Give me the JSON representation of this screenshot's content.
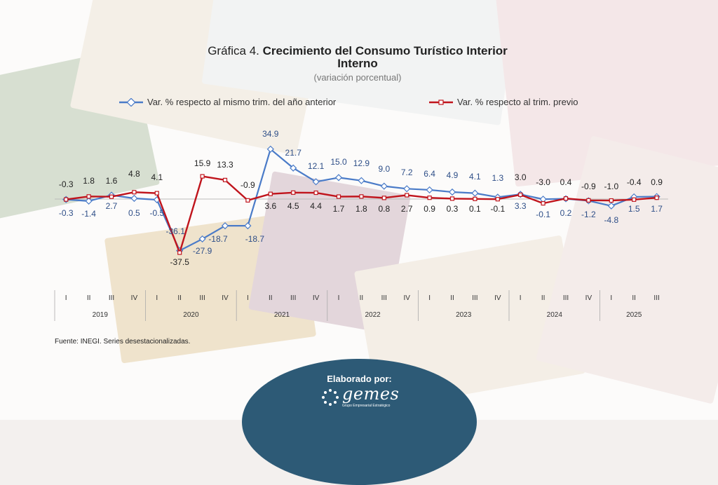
{
  "chart_data": {
    "type": "line",
    "title_prefix": "Gráfica 4.",
    "title_line1": "Crecimiento del Consumo Turístico Interior",
    "title_line2": "Interno",
    "subtitle": "(variación porcentual)",
    "xlabel": "",
    "ylabel": "",
    "quarter_labels": [
      "I",
      "II",
      "III",
      "IV",
      "I",
      "II",
      "III",
      "IV",
      "I",
      "II",
      "III",
      "IV",
      "I",
      "II",
      "III",
      "IV",
      "I",
      "II",
      "III",
      "IV",
      "I",
      "II",
      "III",
      "IV",
      "I",
      "II",
      "III"
    ],
    "years": [
      {
        "label": "2019",
        "quarters": 4
      },
      {
        "label": "2020",
        "quarters": 4
      },
      {
        "label": "2021",
        "quarters": 4
      },
      {
        "label": "2022",
        "quarters": 4
      },
      {
        "label": "2023",
        "quarters": 4
      },
      {
        "label": "2024",
        "quarters": 4
      },
      {
        "label": "2025",
        "quarters": 3
      }
    ],
    "ylim": [
      -40,
      40
    ],
    "grid": false,
    "legend_position": "top",
    "series": [
      {
        "name": "Var. % respecto al mismo trim. del año anterior",
        "color": "#4a7bc8",
        "marker": "diamond",
        "values": [
          -0.3,
          -1.4,
          2.7,
          0.5,
          -0.5,
          -36.1,
          -27.9,
          -18.7,
          -18.7,
          34.9,
          21.7,
          12.1,
          15.0,
          12.9,
          9.0,
          7.2,
          6.4,
          4.9,
          4.1,
          1.3,
          3.3,
          -0.1,
          0.2,
          -1.2,
          -4.8,
          1.5,
          1.7
        ],
        "labels": [
          "-0.3",
          "-1.4",
          "2.7",
          "0.5",
          "-0.5",
          "-36.1",
          "-27.9",
          "-18.7",
          "-18.7",
          "34.9",
          "21.7",
          "12.1",
          "15.0",
          "12.9",
          "9.0",
          "7.2",
          "6.4",
          "4.9",
          "4.1",
          "1.3",
          "3.3",
          "-0.1",
          "0.2",
          "-1.2",
          "-4.8",
          "1.5",
          "1.7"
        ]
      },
      {
        "name": "Var. % respecto al trim. previo",
        "color": "#c0141c",
        "marker": "square",
        "values": [
          -0.3,
          1.8,
          1.6,
          4.8,
          4.1,
          -37.5,
          15.9,
          13.3,
          -0.9,
          3.6,
          4.5,
          4.4,
          1.7,
          1.8,
          0.8,
          2.7,
          0.9,
          0.3,
          0.1,
          -0.1,
          3.0,
          -3.0,
          0.4,
          -0.9,
          -1.0,
          -0.4,
          0.9
        ],
        "labels": [
          "-0.3",
          "1.8",
          "1.6",
          "4.8",
          "4.1",
          "-37.5",
          "15.9",
          "13.3",
          "-0.9",
          "3.6",
          "4.5",
          "4.4",
          "1.7",
          "1.8",
          "0.8",
          "2.7",
          "0.9",
          "0.3",
          "0.1",
          "-0.1",
          "3.0",
          "-3.0",
          "0.4",
          "-0.9",
          "-1.0",
          "-0.4",
          "0.9"
        ]
      }
    ]
  },
  "source": "Fuente: INEGI. Series desestacionalizadas.",
  "footer": {
    "credit": "Elaborado por:",
    "logo_name": "gemes",
    "logo_sub": "Grupo Empresarial Estratégico"
  }
}
